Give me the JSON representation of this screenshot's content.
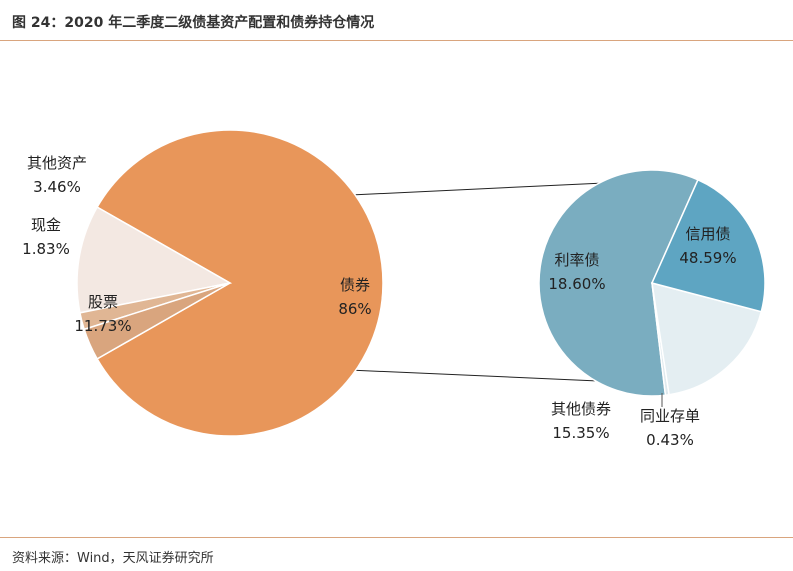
{
  "header": {
    "title": "图 24：2020 年二季度二级债基资产配置和债券持仓情况"
  },
  "footer": {
    "source": "资料来源：Wind，天风证券研究所"
  },
  "chart_data": [
    {
      "type": "pie",
      "name": "asset_allocation",
      "slices": [
        {
          "label": "债券",
          "value": 86,
          "display": "86%",
          "color": "#e8965a"
        },
        {
          "label": "股票",
          "value": 11.73,
          "display": "11.73%",
          "color": "#f3e8e2"
        },
        {
          "label": "现金",
          "value": 1.83,
          "display": "1.83%",
          "color": "#e0b694"
        },
        {
          "label": "其他资产",
          "value": 3.46,
          "display": "3.46%",
          "color": "#d9a57e"
        }
      ]
    },
    {
      "type": "pie",
      "name": "bond_holdings",
      "parent_slice": "债券",
      "slices": [
        {
          "label": "信用债",
          "value": 48.59,
          "display": "48.59%",
          "color": "#7aadc0"
        },
        {
          "label": "同业存单",
          "value": 0.43,
          "display": "0.43%",
          "color": "#dfe9ee"
        },
        {
          "label": "其他债券",
          "value": 15.35,
          "display": "15.35%",
          "color": "#e4eef2"
        },
        {
          "label": "利率债",
          "value": 18.6,
          "display": "18.60%",
          "color": "#5ea5c2"
        }
      ]
    }
  ]
}
